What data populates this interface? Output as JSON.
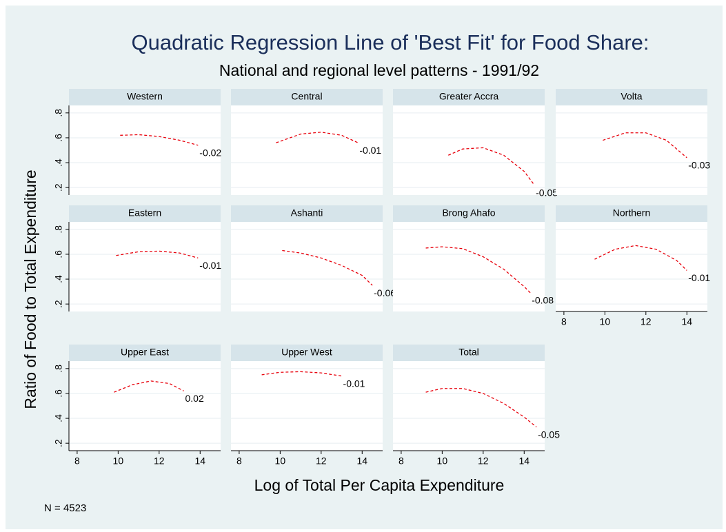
{
  "figure": {
    "title": "Quadratic Regression Line of 'Best Fit'  for Food Share:",
    "subtitle": "National and regional level patterns - 1991/92",
    "xlabel": "Log of Total Per Capita Expenditure",
    "ylabel": "Ratio of Food to Total  Expenditure",
    "note": "N = 4523"
  },
  "chart_data": [
    {
      "type": "line",
      "title": "Western",
      "x": [
        10.1,
        11,
        12,
        13,
        13.9
      ],
      "series": [
        {
          "color": "#e8000b",
          "values": [
            0.62,
            0.625,
            0.61,
            0.58,
            0.54
          ]
        }
      ],
      "annotation": "-0.02",
      "xlim": [
        7.6,
        15
      ],
      "ylim": [
        0.14,
        0.86
      ],
      "yticks": [
        {
          "value": 0.2,
          "label": ".2"
        },
        {
          "value": 0.4,
          "label": ".4"
        },
        {
          "value": 0.6,
          "label": ".6"
        },
        {
          "value": 0.8,
          "label": ".8"
        }
      ],
      "grid": true
    },
    {
      "type": "line",
      "title": "Central",
      "x": [
        9.8,
        11,
        12,
        13,
        13.8
      ],
      "series": [
        {
          "color": "#e8000b",
          "values": [
            0.56,
            0.63,
            0.645,
            0.62,
            0.56
          ]
        }
      ],
      "annotation": "-0.01",
      "xlim": [
        7.6,
        15
      ],
      "ylim": [
        0.14,
        0.86
      ],
      "yticks": [
        {
          "value": 0.2,
          "label": ".2"
        },
        {
          "value": 0.4,
          "label": ".4"
        },
        {
          "value": 0.6,
          "label": ".6"
        },
        {
          "value": 0.8,
          "label": ".8"
        }
      ],
      "grid": true
    },
    {
      "type": "line",
      "title": "Greater Accra",
      "x": [
        10.3,
        11,
        12,
        13,
        14,
        14.5
      ],
      "series": [
        {
          "color": "#e8000b",
          "values": [
            0.46,
            0.51,
            0.52,
            0.46,
            0.33,
            0.22
          ]
        }
      ],
      "annotation": "-0.05",
      "xlim": [
        7.6,
        15
      ],
      "ylim": [
        0.14,
        0.86
      ],
      "yticks": [
        {
          "value": 0.2,
          "label": ".2"
        },
        {
          "value": 0.4,
          "label": ".4"
        },
        {
          "value": 0.6,
          "label": ".6"
        },
        {
          "value": 0.8,
          "label": ".8"
        }
      ],
      "grid": true
    },
    {
      "type": "line",
      "title": "Volta",
      "x": [
        9.9,
        11,
        12,
        13,
        14
      ],
      "series": [
        {
          "color": "#e8000b",
          "values": [
            0.58,
            0.64,
            0.64,
            0.58,
            0.44
          ]
        }
      ],
      "annotation": "-0.03",
      "xlim": [
        7.6,
        15
      ],
      "ylim": [
        0.14,
        0.86
      ],
      "yticks": [
        {
          "value": 0.2,
          "label": ".2"
        },
        {
          "value": 0.4,
          "label": ".4"
        },
        {
          "value": 0.6,
          "label": ".6"
        },
        {
          "value": 0.8,
          "label": ".8"
        }
      ],
      "grid": true
    },
    {
      "type": "line",
      "title": "Eastern",
      "x": [
        9.9,
        11,
        12,
        13,
        13.9
      ],
      "series": [
        {
          "color": "#e8000b",
          "values": [
            0.59,
            0.62,
            0.625,
            0.61,
            0.57
          ]
        }
      ],
      "annotation": "-0.01",
      "xlim": [
        7.6,
        15
      ],
      "ylim": [
        0.14,
        0.86
      ],
      "yticks": [
        {
          "value": 0.2,
          "label": ".2"
        },
        {
          "value": 0.4,
          "label": ".4"
        },
        {
          "value": 0.6,
          "label": ".6"
        },
        {
          "value": 0.8,
          "label": ".8"
        }
      ],
      "grid": true
    },
    {
      "type": "line",
      "title": "Ashanti",
      "x": [
        10.1,
        11,
        12,
        13,
        14,
        14.5
      ],
      "series": [
        {
          "color": "#e8000b",
          "values": [
            0.63,
            0.61,
            0.57,
            0.51,
            0.43,
            0.35
          ]
        }
      ],
      "annotation": "-0.06",
      "xlim": [
        7.6,
        15
      ],
      "ylim": [
        0.14,
        0.86
      ],
      "yticks": [
        {
          "value": 0.2,
          "label": ".2"
        },
        {
          "value": 0.4,
          "label": ".4"
        },
        {
          "value": 0.6,
          "label": ".6"
        },
        {
          "value": 0.8,
          "label": ".8"
        }
      ],
      "grid": true
    },
    {
      "type": "line",
      "title": "Brong Ahafo",
      "x": [
        9.2,
        10,
        11,
        12,
        13,
        14,
        14.3
      ],
      "series": [
        {
          "color": "#e8000b",
          "values": [
            0.65,
            0.66,
            0.645,
            0.58,
            0.48,
            0.34,
            0.29
          ]
        }
      ],
      "annotation": "-0.08",
      "xlim": [
        7.6,
        15
      ],
      "ylim": [
        0.14,
        0.86
      ],
      "yticks": [
        {
          "value": 0.2,
          "label": ".2"
        },
        {
          "value": 0.4,
          "label": ".4"
        },
        {
          "value": 0.6,
          "label": ".6"
        },
        {
          "value": 0.8,
          "label": ".8"
        }
      ],
      "grid": true
    },
    {
      "type": "line",
      "title": "Northern",
      "x": [
        9.5,
        10.5,
        11.5,
        12.5,
        13.5,
        14
      ],
      "series": [
        {
          "color": "#e8000b",
          "values": [
            0.56,
            0.64,
            0.67,
            0.64,
            0.55,
            0.47
          ]
        }
      ],
      "annotation": "-0.01",
      "xlim": [
        7.6,
        15
      ],
      "ylim": [
        0.14,
        0.86
      ],
      "xticks": [
        8,
        10,
        12,
        14
      ],
      "yticks": [
        {
          "value": 0.2,
          "label": ".2"
        },
        {
          "value": 0.4,
          "label": ".4"
        },
        {
          "value": 0.6,
          "label": ".6"
        },
        {
          "value": 0.8,
          "label": ".8"
        }
      ],
      "grid": true
    },
    {
      "type": "line",
      "title": "Upper East",
      "x": [
        9.8,
        10.7,
        11.6,
        12.5,
        13.2
      ],
      "series": [
        {
          "color": "#e8000b",
          "values": [
            0.61,
            0.67,
            0.7,
            0.68,
            0.62
          ]
        }
      ],
      "annotation": "0.02",
      "xlim": [
        7.6,
        15
      ],
      "ylim": [
        0.14,
        0.86
      ],
      "xticks": [
        8,
        10,
        12,
        14
      ],
      "yticks": [
        {
          "value": 0.2,
          "label": ".2"
        },
        {
          "value": 0.4,
          "label": ".4"
        },
        {
          "value": 0.6,
          "label": ".6"
        },
        {
          "value": 0.8,
          "label": ".8"
        }
      ],
      "grid": true
    },
    {
      "type": "line",
      "title": "Upper West",
      "x": [
        9.1,
        10,
        11,
        12,
        13
      ],
      "series": [
        {
          "color": "#e8000b",
          "values": [
            0.75,
            0.77,
            0.775,
            0.765,
            0.74
          ]
        }
      ],
      "annotation": "-0.01",
      "xlim": [
        7.6,
        15
      ],
      "ylim": [
        0.14,
        0.86
      ],
      "xticks": [
        8,
        10,
        12,
        14
      ],
      "yticks": [
        {
          "value": 0.2,
          "label": ".2"
        },
        {
          "value": 0.4,
          "label": ".4"
        },
        {
          "value": 0.6,
          "label": ".6"
        },
        {
          "value": 0.8,
          "label": ".8"
        }
      ],
      "grid": true
    },
    {
      "type": "line",
      "title": "Total",
      "x": [
        9.2,
        10,
        11,
        12,
        13,
        14,
        14.6
      ],
      "series": [
        {
          "color": "#e8000b",
          "values": [
            0.61,
            0.64,
            0.64,
            0.6,
            0.52,
            0.41,
            0.33
          ]
        }
      ],
      "annotation": "-0.05",
      "xlim": [
        7.6,
        15
      ],
      "ylim": [
        0.14,
        0.86
      ],
      "xticks": [
        8,
        10,
        12,
        14
      ],
      "yticks": [
        {
          "value": 0.2,
          "label": ".2"
        },
        {
          "value": 0.4,
          "label": ".4"
        },
        {
          "value": 0.6,
          "label": ".6"
        },
        {
          "value": 0.8,
          "label": ".8"
        }
      ],
      "grid": true
    }
  ]
}
